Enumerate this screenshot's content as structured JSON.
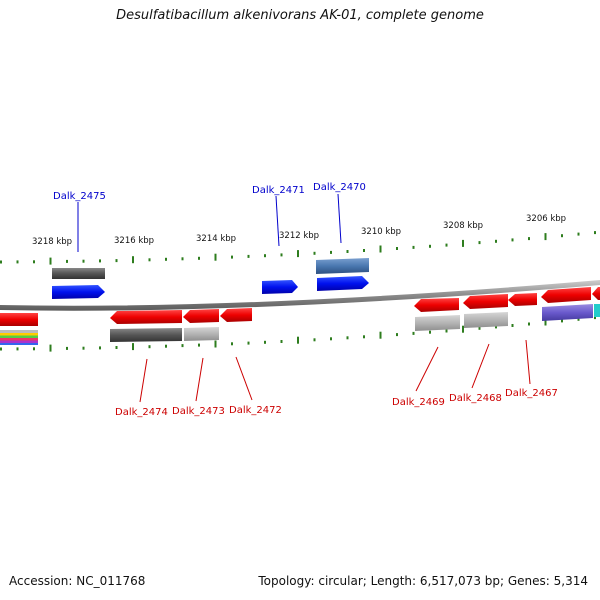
{
  "title": "Desulfatibacillum alkenivorans AK-01, complete genome",
  "footer": {
    "accession": "Accession: NC_011768",
    "summary": "Topology: circular; Length: 6,517,073 bp; Genes: 5,314"
  },
  "ticks": [
    "3218 kbp",
    "3216 kbp",
    "3214 kbp",
    "3212 kbp",
    "3210 kbp",
    "3208 kbp",
    "3206 kbp"
  ],
  "gene_labels_top": [
    "Dalk_2475",
    "Dalk_2471",
    "Dalk_2470"
  ],
  "gene_labels_bottom": [
    "Dalk_2474",
    "Dalk_2473",
    "Dalk_2472",
    "Dalk_2469",
    "Dalk_2468",
    "Dalk_2467"
  ],
  "colors": {
    "forward_gene": "#0000ee",
    "reverse_gene": "#ee0000",
    "label_forward": "#0000cc",
    "label_reverse": "#cc0000",
    "backbone": "#888888",
    "tick_mark": "#2e7d1e"
  }
}
